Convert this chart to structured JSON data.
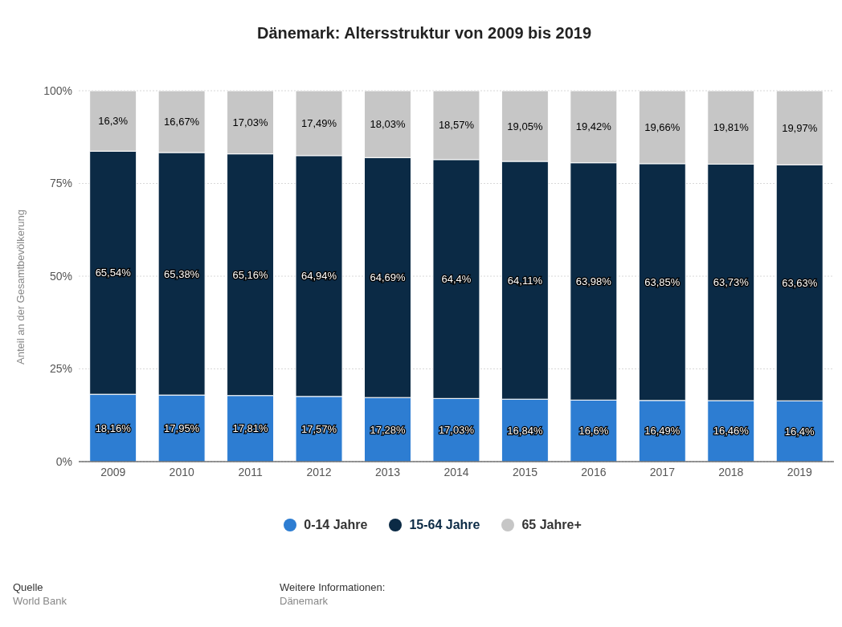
{
  "chart_data": {
    "type": "bar",
    "stacked": true,
    "title": "Dänemark: Altersstruktur von 2009 bis 2019",
    "ylabel": "Anteil an der Gesamtbevölkerung",
    "categories": [
      "2009",
      "2010",
      "2011",
      "2012",
      "2013",
      "2014",
      "2015",
      "2016",
      "2017",
      "2018",
      "2019"
    ],
    "series": [
      {
        "name": "0-14 Jahre",
        "color": "#2d7dd2",
        "values": [
          18.16,
          17.95,
          17.81,
          17.57,
          17.28,
          17.03,
          16.84,
          16.6,
          16.49,
          16.46,
          16.4
        ],
        "value_labels": [
          "18,16%",
          "17,95%",
          "17,81%",
          "17,57%",
          "17,28%",
          "17,03%",
          "16,84%",
          "16,6%",
          "16,49%",
          "16,46%",
          "16,4%"
        ]
      },
      {
        "name": "15-64 Jahre",
        "color": "#0b2a45",
        "values": [
          65.54,
          65.38,
          65.16,
          64.94,
          64.69,
          64.4,
          64.11,
          63.98,
          63.85,
          63.73,
          63.63
        ],
        "value_labels": [
          "65,54%",
          "65,38%",
          "65,16%",
          "64,94%",
          "64,69%",
          "64,4%",
          "64,11%",
          "63,98%",
          "63,85%",
          "63,73%",
          "63,63%"
        ]
      },
      {
        "name": "65 Jahre+",
        "color": "#c6c6c6",
        "values": [
          16.3,
          16.67,
          17.03,
          17.49,
          18.03,
          18.57,
          19.05,
          19.42,
          19.66,
          19.81,
          19.97
        ],
        "value_labels": [
          "16,3%",
          "16,67%",
          "17,03%",
          "17,49%",
          "18,03%",
          "18,57%",
          "19,05%",
          "19,42%",
          "19,66%",
          "19,81%",
          "19,97%"
        ]
      }
    ],
    "ylim": [
      0,
      100
    ],
    "yticks": [
      {
        "value": 0,
        "label": "0%"
      },
      {
        "value": 25,
        "label": "25%"
      },
      {
        "value": 50,
        "label": "50%"
      },
      {
        "value": 75,
        "label": "75%"
      },
      {
        "value": 100,
        "label": "100%"
      }
    ],
    "grid": "y",
    "legend": "bottom",
    "annotations": [
      "Quelle",
      "World Bank",
      "Weitere Informationen:",
      "Dänemark"
    ]
  }
}
